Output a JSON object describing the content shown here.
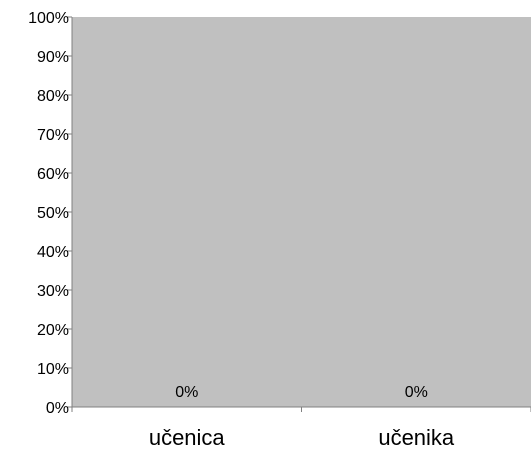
{
  "chart_data": {
    "type": "bar",
    "categories": [
      "učenica",
      "učenika"
    ],
    "values": [
      0,
      0
    ],
    "data_labels": [
      "0%",
      "0%"
    ],
    "y_ticks": [
      "0%",
      "10%",
      "20%",
      "30%",
      "40%",
      "50%",
      "60%",
      "70%",
      "80%",
      "90%",
      "100%"
    ],
    "ylim": [
      0,
      100
    ],
    "title": "",
    "xlabel": "",
    "ylabel": "",
    "grid": false,
    "colors": {
      "plot_background": "#c0c0c0",
      "axis": "#808080",
      "text": "#000000"
    }
  }
}
